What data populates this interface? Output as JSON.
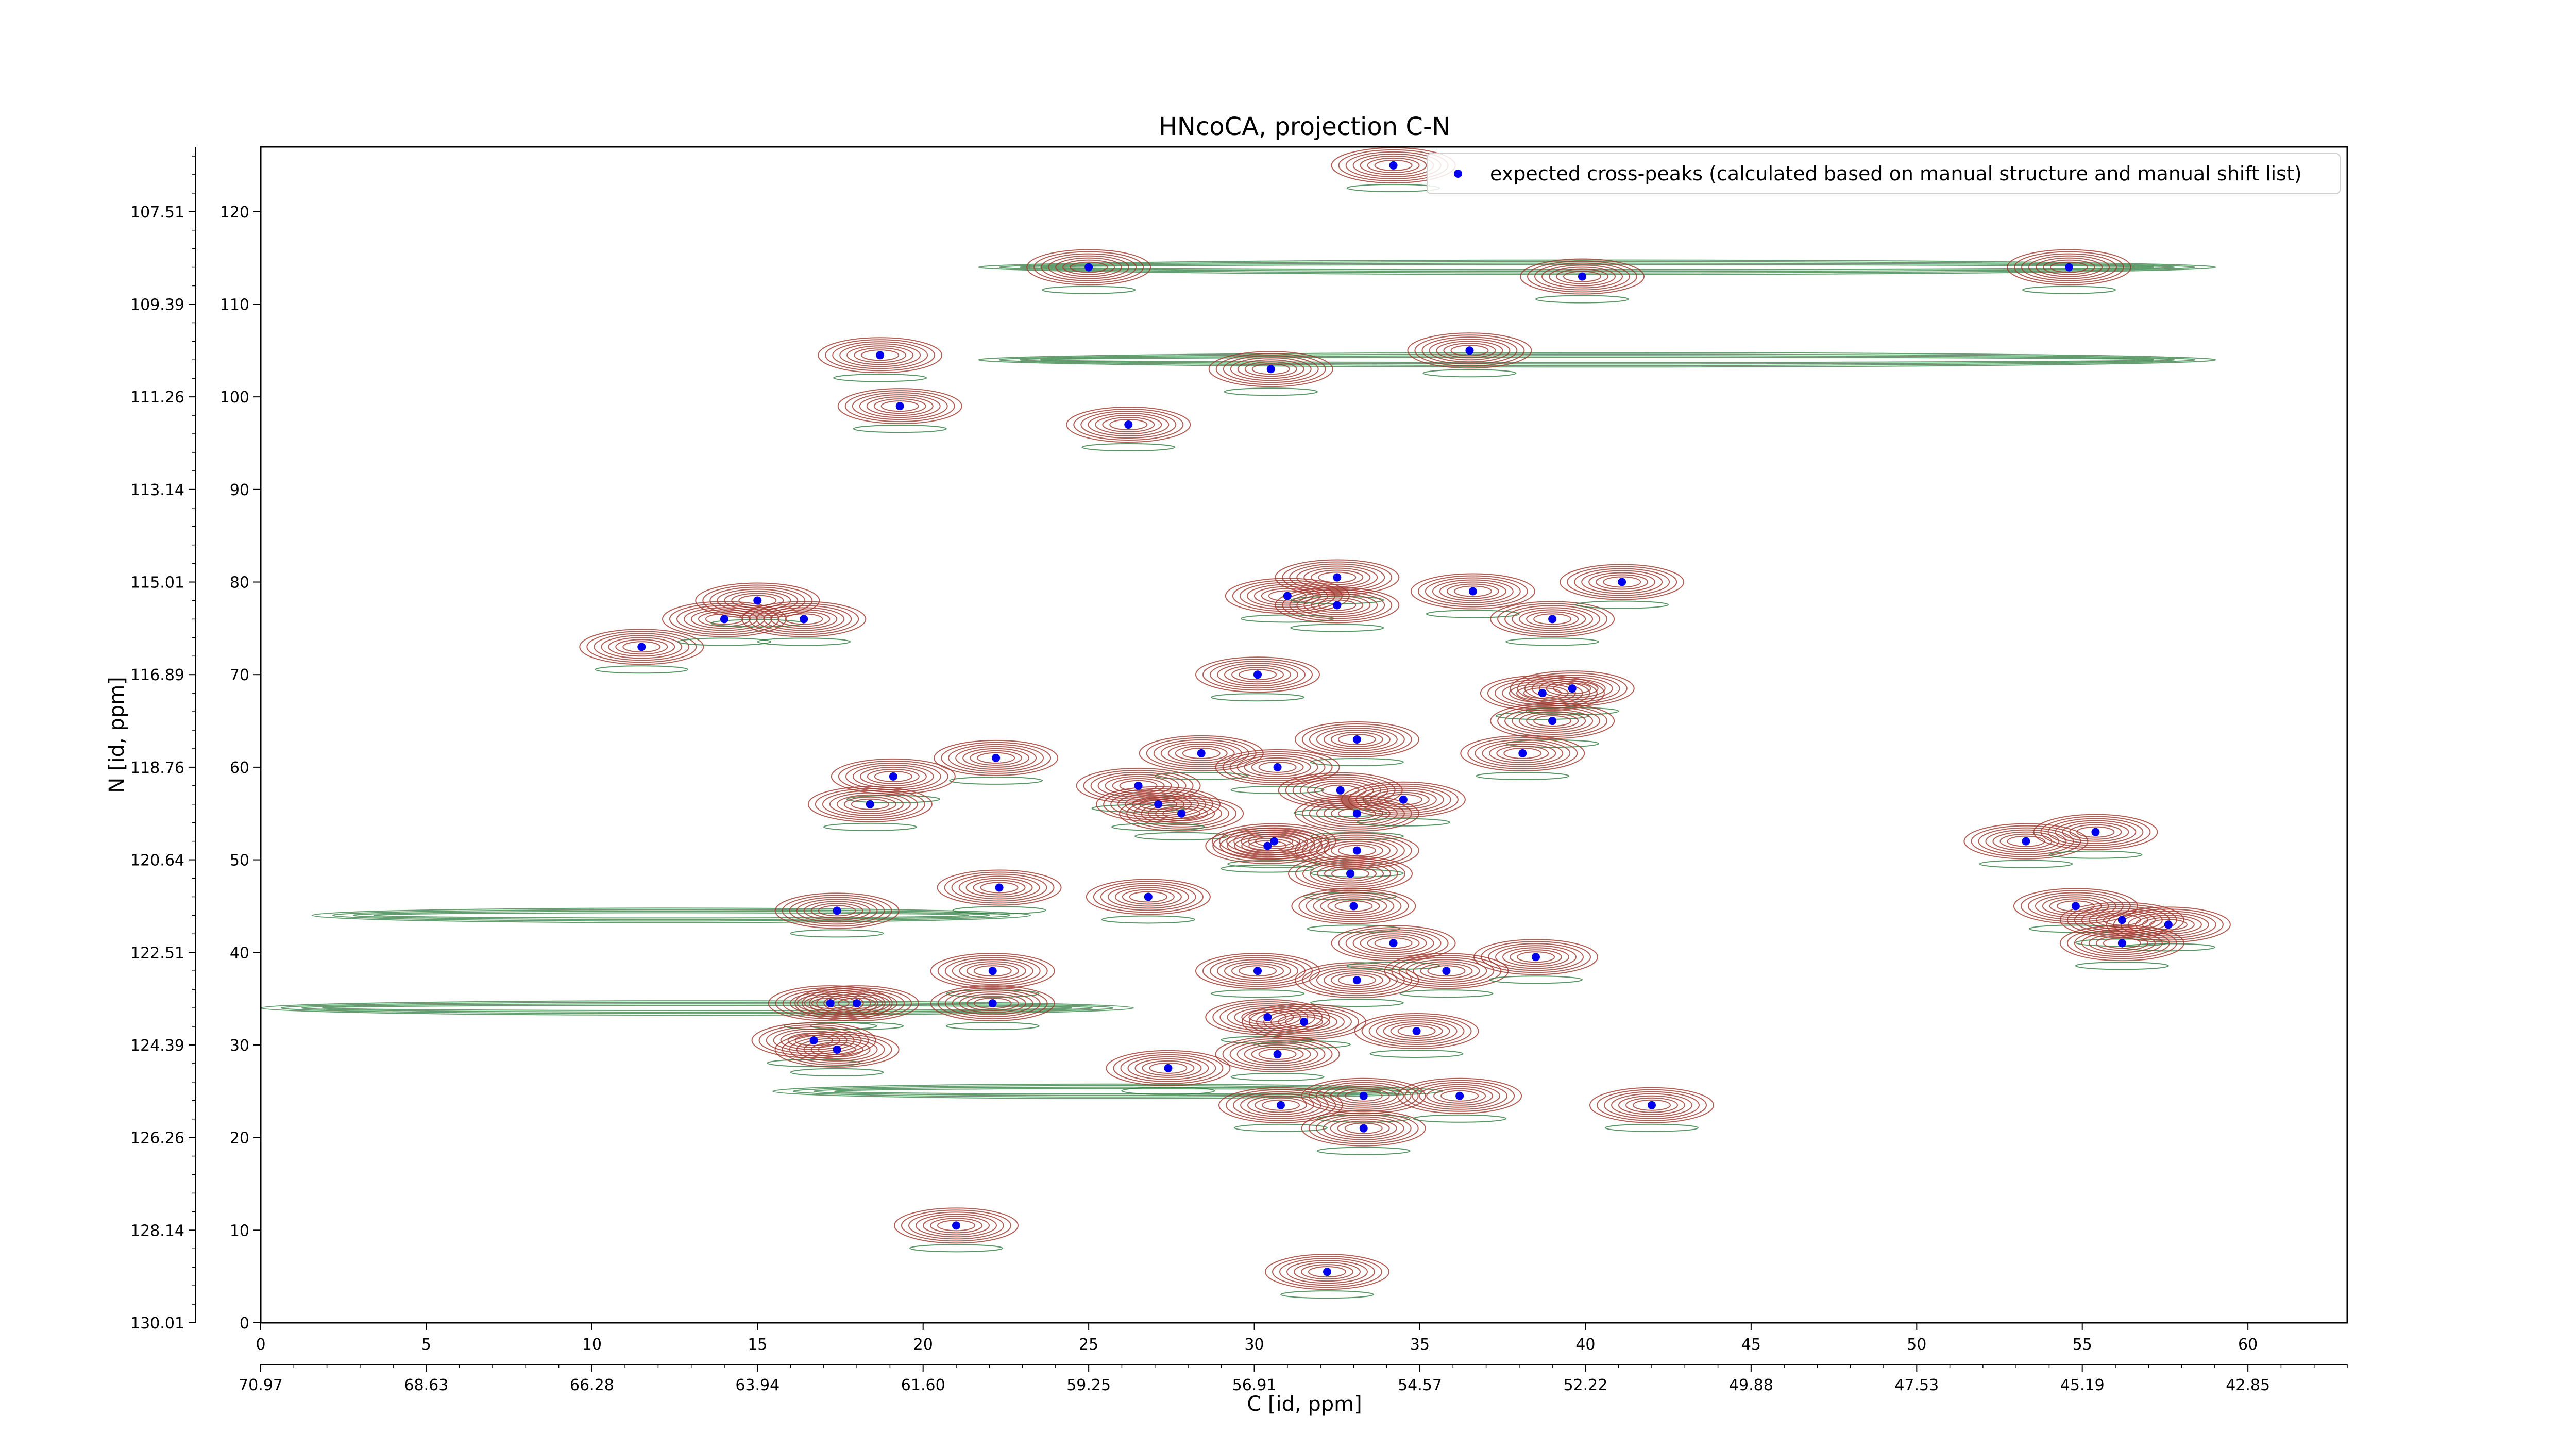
{
  "chart_data": {
    "type": "scatter",
    "title": "HNcoCA, projection C-N",
    "xlabel": "C [id, ppm]",
    "ylabel": "N [id, ppm]",
    "x_index_range": [
      0,
      63
    ],
    "y_index_range": [
      0,
      127
    ],
    "x_index_ticks": [
      "0",
      "5",
      "10",
      "15",
      "20",
      "25",
      "30",
      "35",
      "40",
      "45",
      "50",
      "55",
      "60"
    ],
    "y_index_ticks": [
      "0",
      "10",
      "20",
      "30",
      "40",
      "50",
      "60",
      "70",
      "80",
      "90",
      "100",
      "110",
      "120"
    ],
    "x_ppm_ticks": [
      "70.97",
      "68.63",
      "66.28",
      "63.94",
      "61.60",
      "59.25",
      "56.91",
      "54.57",
      "52.22",
      "49.88",
      "47.53",
      "45.19",
      "42.85"
    ],
    "y_ppm_ticks": [
      "130.01",
      "128.14",
      "126.26",
      "124.39",
      "122.51",
      "120.64",
      "118.76",
      "116.89",
      "115.01",
      "113.14",
      "111.26",
      "109.39",
      "107.51"
    ],
    "legend": {
      "label": "expected cross-peaks (calculated based on manual structure and manual shift list)",
      "location": "top-right"
    },
    "colors": {
      "positive_contour": "#a0362a",
      "negative_contour": "#2e7d3e",
      "peak_marker": "#0000ee"
    },
    "series": [
      {
        "name": "expected cross-peaks (calculated based on manual structure and manual shift list)",
        "x": [
          34.2,
          25.0,
          39.9,
          54.6,
          18.7,
          30.5,
          36.5,
          19.3,
          26.2,
          11.5,
          14.0,
          15.0,
          16.4,
          31.0,
          32.5,
          32.5,
          36.6,
          39.0,
          41.1,
          30.1,
          38.7,
          39.6,
          39.0,
          22.2,
          28.4,
          33.1,
          19.1,
          18.4,
          26.5,
          27.8,
          27.1,
          30.7,
          32.6,
          33.1,
          34.5,
          38.1,
          30.6,
          30.4,
          33.1,
          22.3,
          26.8,
          32.9,
          17.4,
          33.0,
          53.3,
          55.4,
          54.8,
          56.2,
          57.6,
          56.2,
          22.1,
          30.1,
          33.1,
          34.2,
          35.8,
          38.5,
          17.2,
          18.0,
          22.1,
          30.4,
          31.5,
          34.9,
          16.7,
          17.4,
          30.7,
          27.4,
          30.8,
          33.3,
          33.3,
          36.2,
          42.0,
          21.0,
          32.2
        ],
        "y": [
          125.0,
          114.0,
          113.0,
          114.0,
          104.5,
          103.0,
          105.0,
          99.0,
          97.0,
          73.0,
          76.0,
          78.0,
          76.0,
          78.5,
          80.5,
          77.5,
          79.0,
          76.0,
          80.0,
          70.0,
          68.0,
          68.5,
          65.0,
          61.0,
          61.5,
          63.0,
          59.0,
          56.0,
          58.0,
          55.0,
          56.0,
          60.0,
          57.5,
          55.0,
          56.5,
          61.5,
          52.0,
          51.5,
          51.0,
          47.0,
          46.0,
          48.5,
          44.5,
          45.0,
          52.0,
          53.0,
          45.0,
          43.5,
          43.0,
          41.0,
          38.0,
          38.0,
          37.0,
          41.0,
          38.0,
          39.5,
          34.5,
          34.5,
          34.5,
          33.0,
          32.5,
          31.5,
          30.5,
          29.5,
          29.0,
          27.5,
          23.5,
          24.5,
          21.0,
          24.5,
          23.5,
          10.5,
          5.5
        ]
      }
    ]
  }
}
